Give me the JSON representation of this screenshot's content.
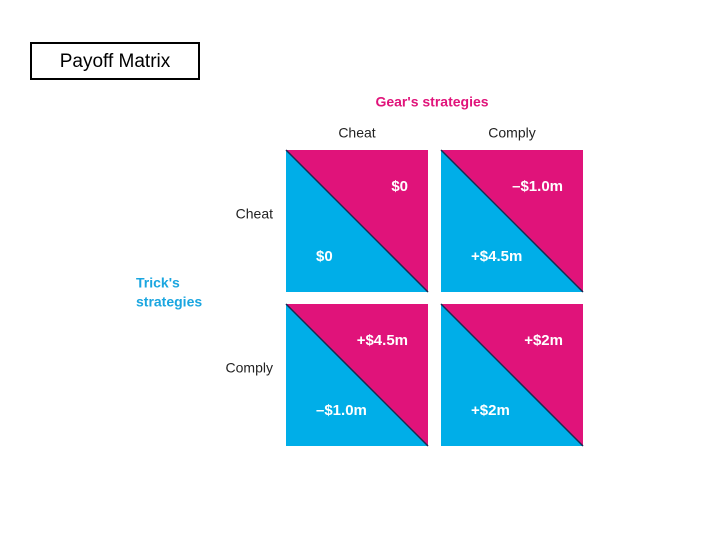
{
  "title": "Payoff Matrix",
  "column_header": "Gear's strategies",
  "row_header": [
    "Trick's",
    "strategies"
  ],
  "columns": [
    "Cheat",
    "Comply"
  ],
  "rows": [
    "Cheat",
    "Comply"
  ],
  "cells": [
    [
      {
        "gear": "$0",
        "trick": "$0"
      },
      {
        "gear": "–$1.0m",
        "trick": "+$4.5m"
      }
    ],
    [
      {
        "gear": "+$4.5m",
        "trick": "–$1.0m"
      },
      {
        "gear": "+$2m",
        "trick": "+$2m"
      }
    ]
  ]
}
